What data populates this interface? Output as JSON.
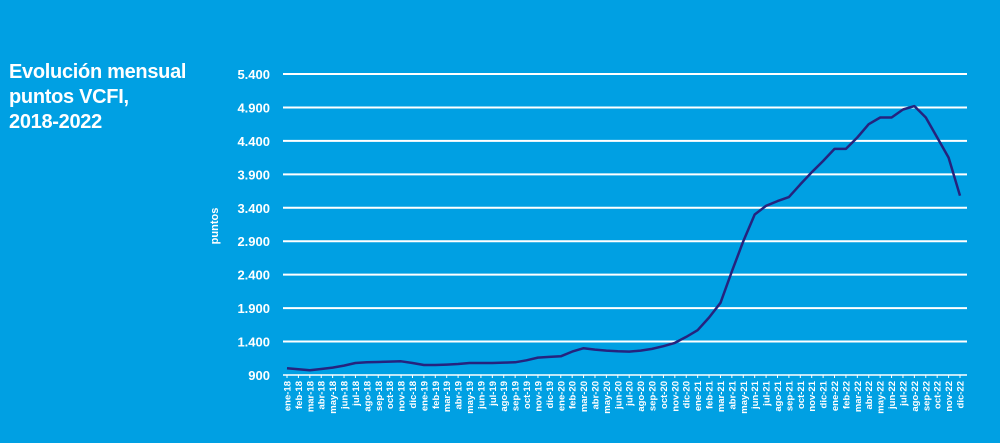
{
  "chart_data": {
    "type": "line",
    "title_lines": [
      "Evolución mensual",
      "puntos VCFI,",
      "2018-2022"
    ],
    "xlabel": "",
    "ylabel": "puntos",
    "ylim": [
      900,
      5400
    ],
    "yticks": [
      900,
      1400,
      1900,
      2400,
      2900,
      3400,
      3900,
      4400,
      4900,
      5400
    ],
    "ytick_labels": [
      "900",
      "1.400",
      "1.900",
      "2.400",
      "2.900",
      "3.400",
      "3.900",
      "4.400",
      "4.900",
      "5.400"
    ],
    "grid": true,
    "legend": "none",
    "line_color": "#25237e",
    "background": "#00a0e3",
    "categories": [
      "ene-18",
      "feb-18",
      "mar-18",
      "abr-18",
      "may-18",
      "jun-18",
      "jul-18",
      "ago-18",
      "sep-18",
      "oct-18",
      "nov-18",
      "dic-18",
      "ene-19",
      "feb-19",
      "mar-19",
      "abr-19",
      "may-19",
      "jun-19",
      "jul-19",
      "ago-19",
      "sep-19",
      "oct-19",
      "nov-19",
      "dic-19",
      "ene-20",
      "feb-20",
      "mar-20",
      "abr-20",
      "may-20",
      "jun-20",
      "jul-20",
      "ago-20",
      "sep-20",
      "oct-20",
      "nov-20",
      "dic-20",
      "ene-21",
      "feb-21",
      "mar-21",
      "abr-21",
      "may-21",
      "jun-21",
      "jul-21",
      "ago-21",
      "sep-21",
      "oct-21",
      "nov-21",
      "dic-21",
      "ene-22",
      "feb-22",
      "mar-22",
      "abr-22",
      "may-22",
      "jun-22",
      "jul-22",
      "ago-22",
      "sep-22",
      "oct-22",
      "nov-22",
      "dic-22"
    ],
    "values": [
      1000,
      985,
      970,
      990,
      1010,
      1040,
      1080,
      1090,
      1095,
      1100,
      1105,
      1080,
      1050,
      1050,
      1055,
      1065,
      1080,
      1080,
      1080,
      1085,
      1090,
      1120,
      1160,
      1170,
      1180,
      1250,
      1300,
      1280,
      1265,
      1255,
      1250,
      1265,
      1290,
      1330,
      1380,
      1470,
      1570,
      1760,
      1980,
      2450,
      2900,
      3300,
      3430,
      3500,
      3560,
      3750,
      3930,
      4100,
      4280,
      4280,
      4450,
      4650,
      4750,
      4750,
      4870,
      4920,
      4750,
      4450,
      4150,
      3580
    ]
  }
}
